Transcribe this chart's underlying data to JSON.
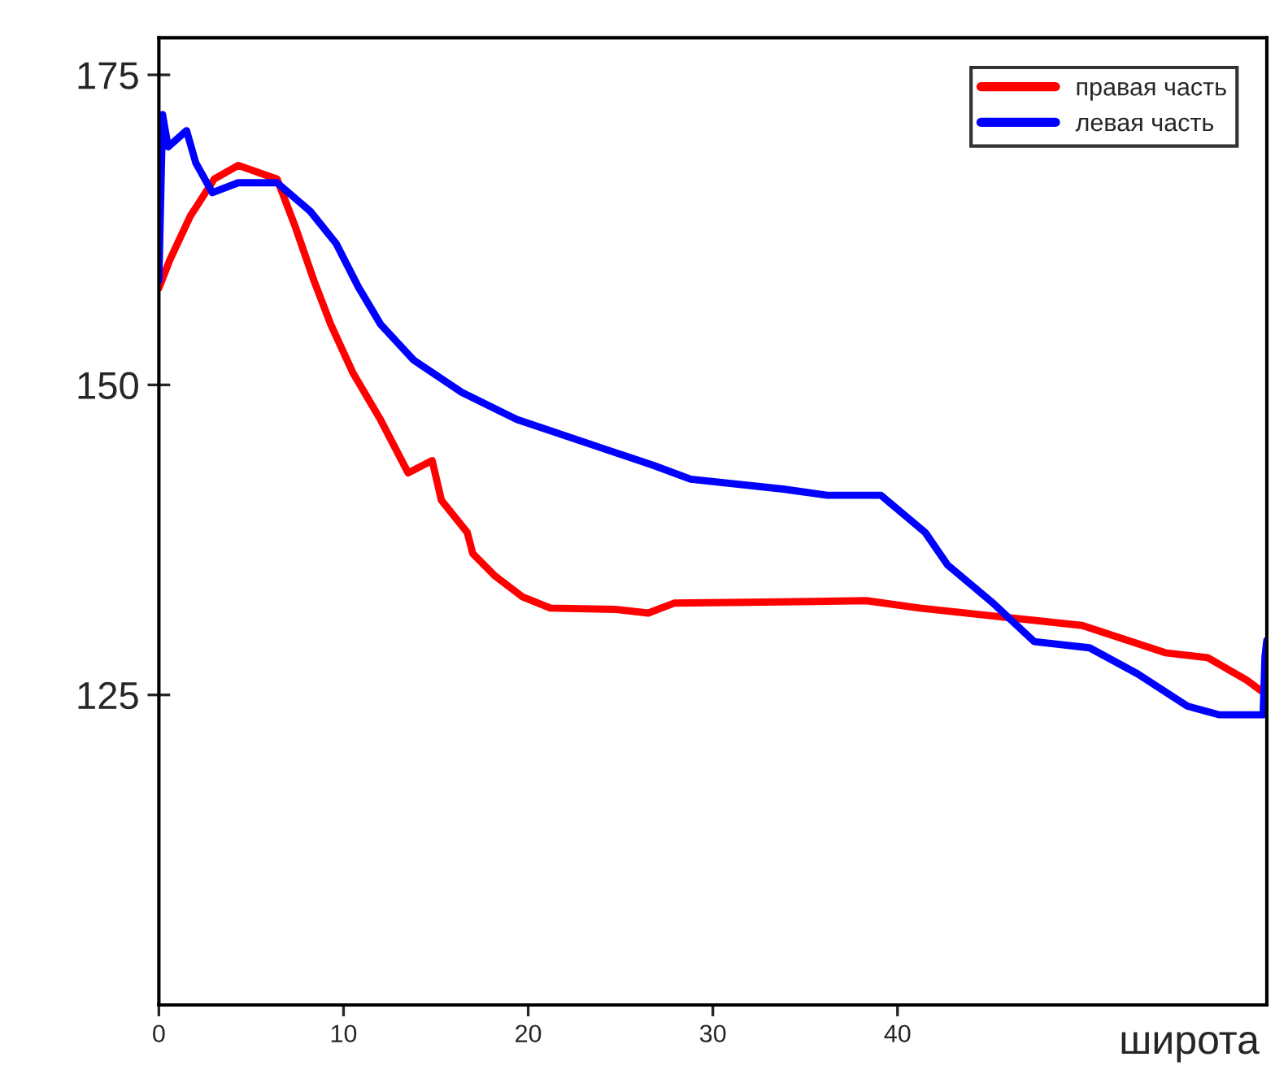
{
  "chart_data": {
    "type": "line",
    "xlabel": "широта",
    "xlim": [
      0,
      60
    ],
    "ylim": [
      100,
      178
    ],
    "xticks": [
      0,
      10,
      20,
      30,
      40
    ],
    "yticks": [
      125,
      150,
      175
    ],
    "grid": false,
    "legend": "top right",
    "line_style": "solid",
    "series": [
      {
        "name": "правая часть",
        "color": "#ff0000",
        "x": [
          0,
          0.6,
          1.7,
          3.0,
          4.3,
          6.4,
          7.4,
          8.4,
          9.3,
          10.5,
          12.0,
          13.5,
          14.8,
          15.3,
          16.7,
          17.0,
          18.2,
          19.7,
          21.2,
          24.7,
          26.5,
          27.9,
          33.8,
          38.3,
          41.2,
          45.6,
          50.0,
          54.5,
          56.8,
          58.9,
          60
        ],
        "values": [
          157.8,
          160.1,
          163.6,
          166.6,
          167.7,
          166.6,
          162.7,
          158.4,
          154.9,
          151.0,
          147.2,
          142.9,
          143.9,
          140.7,
          138.1,
          136.4,
          134.6,
          132.9,
          132.0,
          131.9,
          131.6,
          132.4,
          132.5,
          132.6,
          132.0,
          131.3,
          130.6,
          128.4,
          128.0,
          126.2,
          125.0
        ]
      },
      {
        "name": "левая часть",
        "color": "#0000ff",
        "x": [
          0,
          0.2,
          0.5,
          1.5,
          2.0,
          2.9,
          4.3,
          6.4,
          8.2,
          9.6,
          10.8,
          12.0,
          13.8,
          16.4,
          19.4,
          23.8,
          26.8,
          28.8,
          33.8,
          36.2,
          39.1,
          41.5,
          42.7,
          45.1,
          47.4,
          50.4,
          53.0,
          55.7,
          57.4,
          59.8,
          59.9,
          60
        ],
        "values": [
          158.4,
          171.8,
          169.2,
          170.5,
          167.9,
          165.5,
          166.3,
          166.3,
          164.0,
          161.4,
          157.9,
          154.9,
          152.0,
          149.4,
          147.2,
          145.0,
          143.5,
          142.4,
          141.6,
          141.1,
          141.1,
          138.1,
          135.5,
          132.5,
          129.3,
          128.8,
          126.7,
          124.1,
          123.4,
          123.4,
          128.1,
          129.4
        ]
      }
    ]
  }
}
